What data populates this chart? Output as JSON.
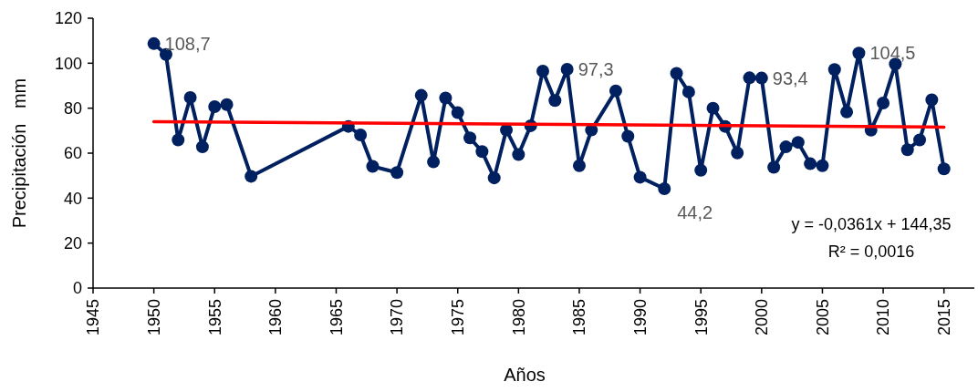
{
  "chart_data": {
    "type": "line",
    "xlabel": "Años",
    "ylabel": "Precipitación   mm",
    "x": [
      1950,
      1951,
      1952,
      1953,
      1954,
      1955,
      1956,
      1958,
      1966,
      1967,
      1968,
      1970,
      1972,
      1973,
      1974,
      1975,
      1976,
      1977,
      1978,
      1979,
      1980,
      1981,
      1982,
      1983,
      1984,
      1985,
      1986,
      1988,
      1989,
      1990,
      1992,
      1993,
      1994,
      1995,
      1996,
      1997,
      1998,
      1999,
      2000,
      2001,
      2002,
      2003,
      2004,
      2005,
      2006,
      2007,
      2008,
      2009,
      2010,
      2011,
      2012,
      2013,
      2014,
      2015
    ],
    "series": [
      {
        "color": "#002060",
        "marker": "circle",
        "values": [
          108.7,
          103.9,
          65.9,
          84.7,
          62.8,
          80.7,
          81.6,
          49.7,
          71.9,
          68.1,
          54.1,
          51.4,
          85.7,
          56.1,
          84.5,
          78.0,
          66.8,
          60.7,
          49.0,
          70.3,
          59.4,
          72.2,
          96.5,
          83.4,
          97.3,
          54.4,
          70.3,
          87.7,
          67.5,
          49.3,
          44.2,
          95.5,
          87.2,
          52.4,
          80.0,
          71.9,
          60.1,
          93.5,
          93.4,
          53.7,
          62.8,
          64.8,
          55.3,
          54.4,
          97.2,
          78.3,
          104.5,
          70.2,
          82.3,
          99.6,
          61.5,
          65.9,
          83.7,
          53.0
        ]
      },
      {
        "type": "line",
        "color": "#ff0000",
        "marker": "none",
        "x": [
          1950,
          2015
        ],
        "values": [
          74.0,
          71.6
        ]
      }
    ],
    "xlim": [
      1945,
      2017.5
    ],
    "xticks": [
      1945,
      1950,
      1955,
      1960,
      1965,
      1970,
      1975,
      1980,
      1985,
      1990,
      1995,
      2000,
      2005,
      2010,
      2015
    ],
    "ylim": [
      0,
      120
    ],
    "yticks": [
      0,
      20,
      40,
      60,
      80,
      100,
      120
    ],
    "grid": false,
    "annotations": [
      {
        "text": "108,7",
        "x": 1950,
        "y": 108.7
      },
      {
        "text": "97,3",
        "x": 1984,
        "y": 97.3
      },
      {
        "text": "44,2",
        "x": 1992,
        "y": 44.2
      },
      {
        "text": "93,4",
        "x": 2000,
        "y": 93.4
      },
      {
        "text": "104,5",
        "x": 2008,
        "y": 104.5
      },
      "y = -0,0361x + 144,35",
      "R² = 0,0016"
    ]
  }
}
